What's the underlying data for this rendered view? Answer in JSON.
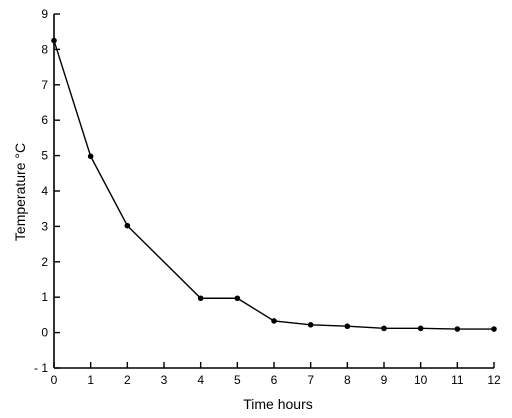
{
  "chart_data": {
    "type": "line",
    "xlabel": "Time  hours",
    "ylabel": "Temperature °C",
    "xlim": [
      0,
      12
    ],
    "ylim": [
      -1,
      9
    ],
    "x_ticks": [
      "0",
      "1",
      "2",
      "3",
      "4",
      "5",
      "6",
      "7",
      "8",
      "9",
      "10",
      "11",
      "12"
    ],
    "y_ticks": [
      "- 1",
      "0",
      "1",
      "2",
      "3",
      "4",
      "5",
      "6",
      "7",
      "8",
      "9"
    ],
    "grid": false,
    "series": [
      {
        "x": [
          0,
          1,
          2,
          4,
          5,
          6,
          7,
          8,
          9,
          10,
          11,
          12
        ],
        "y": [
          8.25,
          4.98,
          3.02,
          0.97,
          0.97,
          0.33,
          0.22,
          0.18,
          0.12,
          0.12,
          0.1,
          0.1
        ],
        "color": "#000000"
      }
    ]
  }
}
